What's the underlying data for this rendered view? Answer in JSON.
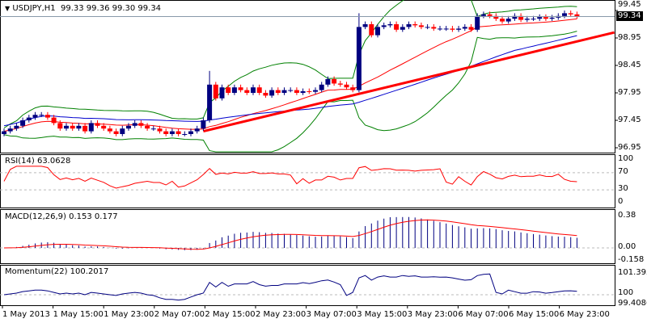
{
  "header": {
    "symbol": "USDJPY,H1",
    "ohlc": "99.33 99.36 99.30 99.34"
  },
  "price_axis": {
    "ticks": [
      "99.45",
      "98.95",
      "98.45",
      "97.95",
      "97.45",
      "96.95"
    ],
    "current": "99.34"
  },
  "rsi": {
    "title": "RSI(14) 63.0628",
    "ticks": [
      "100",
      "70",
      "30",
      "0"
    ]
  },
  "macd": {
    "title": "MACD(12,26,9) 0.153 0.177",
    "ticks": [
      "0.38",
      "0.00",
      "-0.158"
    ]
  },
  "momentum": {
    "title": "Momentum(22) 100.2017",
    "ticks": [
      "101.3954",
      "100",
      "99.4086"
    ]
  },
  "time_axis": [
    "1 May 2013",
    "1 May 15:00",
    "1 May 23:00",
    "2 May 07:00",
    "2 May 15:00",
    "2 May 23:00",
    "3 May 07:00",
    "3 May 15:00",
    "3 May 23:00",
    "6 May 07:00",
    "6 May 15:00",
    "6 May 23:00"
  ],
  "colors": {
    "bull": "#000080",
    "bear": "#ff0000",
    "bands": "#008000",
    "ma_fast": "#ff0000",
    "ma_slow": "#0000cd",
    "trend": "#ff0000"
  },
  "chart_data": {
    "type": "candlestick",
    "title": "USDJPY,H1",
    "ylim": [
      96.95,
      99.45
    ],
    "closes": [
      97.25,
      97.3,
      97.35,
      97.45,
      97.5,
      97.55,
      97.55,
      97.5,
      97.4,
      97.3,
      97.35,
      97.3,
      97.35,
      97.25,
      97.4,
      97.35,
      97.3,
      97.25,
      97.2,
      97.3,
      97.35,
      97.4,
      97.35,
      97.3,
      97.3,
      97.25,
      97.2,
      97.25,
      97.2,
      97.2,
      97.25,
      97.3,
      97.45,
      98.1,
      97.85,
      98.05,
      97.95,
      98.05,
      98.0,
      97.95,
      98.05,
      97.95,
      97.9,
      98.0,
      97.95,
      98.0,
      98.0,
      97.95,
      97.98,
      97.97,
      98.0,
      98.1,
      98.2,
      98.12,
      98.1,
      98.05,
      98.0,
      99.15,
      99.2,
      99.0,
      99.15,
      99.18,
      99.2,
      99.1,
      99.15,
      99.2,
      99.18,
      99.15,
      99.15,
      99.12,
      99.12,
      99.12,
      99.1,
      99.12,
      99.15,
      99.1,
      99.35,
      99.38,
      99.35,
      99.3,
      99.25,
      99.3,
      99.35,
      99.28,
      99.3,
      99.3,
      99.33,
      99.3,
      99.32,
      99.35,
      99.4,
      99.38,
      99.34
    ],
    "first_open": 97.2,
    "trendline": {
      "from_bar": 32,
      "from_price": 97.25,
      "to_bar": 98,
      "to_price": 99.05
    }
  }
}
